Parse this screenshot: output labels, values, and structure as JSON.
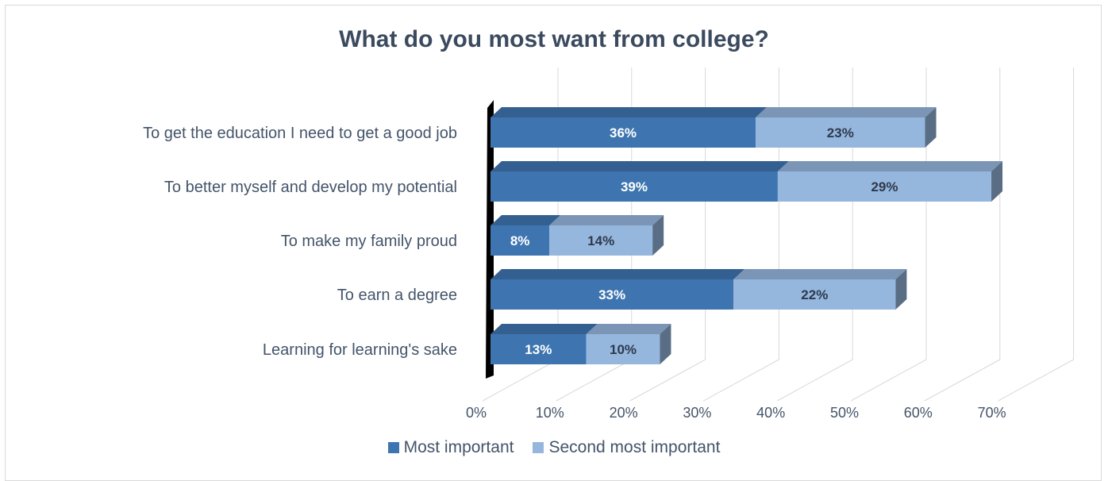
{
  "chart_data": {
    "type": "bar",
    "orientation": "horizontal",
    "stacked": true,
    "style": "3d",
    "title": "What do you most want from college?",
    "categories": [
      "To get the education I need to get a good job",
      "To better myself and develop my potential",
      "To make my family proud",
      "To earn a degree",
      "Learning for learning's sake"
    ],
    "series": [
      {
        "name": "Most important",
        "values": [
          36,
          39,
          8,
          33,
          13
        ],
        "labels": [
          "36%",
          "39%",
          "8%",
          "33%",
          "13%"
        ],
        "color": "#3e75b0"
      },
      {
        "name": "Second most important",
        "values": [
          23,
          29,
          14,
          22,
          10
        ],
        "labels": [
          "23%",
          "29%",
          "14%",
          "22%",
          "10%"
        ],
        "color": "#95b6dd"
      }
    ],
    "x_ticks": [
      "0%",
      "10%",
      "20%",
      "30%",
      "40%",
      "50%",
      "60%",
      "70%"
    ],
    "xlim": [
      0,
      70
    ],
    "grid": true,
    "legend_position": "bottom"
  }
}
